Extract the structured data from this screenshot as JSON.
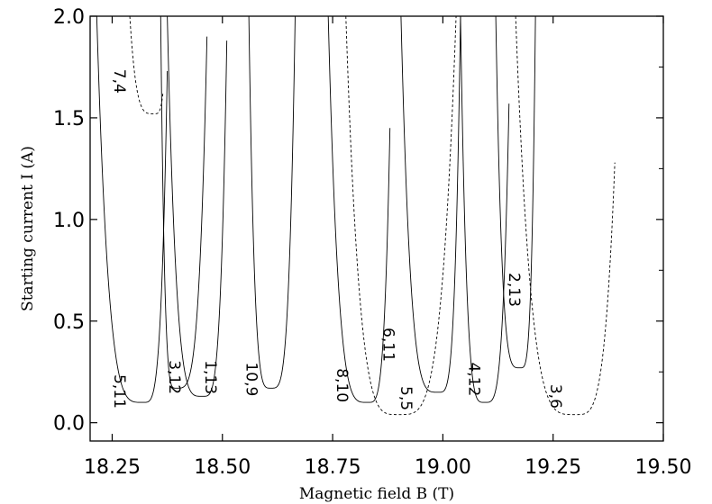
{
  "chart_data": {
    "type": "line",
    "xlabel": "Magnetic field B (T)",
    "ylabel": "Starting current I (A)",
    "xlim": [
      18.2,
      19.5
    ],
    "ylim": [
      -0.09,
      2.0
    ],
    "x_ticks": [
      {
        "value": 18.25,
        "label": "18.25"
      },
      {
        "value": 18.5,
        "label": "18.50"
      },
      {
        "value": 18.75,
        "label": "18.75"
      },
      {
        "value": 19.0,
        "label": "19.00"
      },
      {
        "value": 19.25,
        "label": "19.25"
      },
      {
        "value": 19.5,
        "label": "19.50"
      }
    ],
    "y_ticks": [
      {
        "value": 0.0,
        "label": "0.0"
      },
      {
        "value": 0.5,
        "label": "0.5"
      },
      {
        "value": 1.0,
        "label": "1.0"
      },
      {
        "value": 1.5,
        "label": "1.5"
      },
      {
        "value": 2.0,
        "label": "2.0"
      }
    ],
    "series": [
      {
        "label": "5,11",
        "style": "solid",
        "xl": 18.215,
        "xmin": 18.32,
        "xr": 18.375,
        "ymin": 0.1,
        "yl": 2.0,
        "yr": 1.73
      },
      {
        "label": "7,4",
        "style": "dashed",
        "xl": 18.29,
        "xmin": 18.345,
        "xr": 18.365,
        "ymin": 1.52,
        "yl": 2.0,
        "yr": 1.62
      },
      {
        "label": "3,12",
        "style": "solid",
        "xl": 18.36,
        "xmin": 18.395,
        "xr": 18.465,
        "ymin": 0.17,
        "yl": 2.0,
        "yr": 1.9
      },
      {
        "label": "1,13",
        "style": "solid",
        "xl": 18.375,
        "xmin": 18.455,
        "xr": 18.51,
        "ymin": 0.13,
        "yl": 2.0,
        "yr": 1.88
      },
      {
        "label": "10,9",
        "style": "solid",
        "xl": 18.56,
        "xmin": 18.61,
        "xr": 18.665,
        "ymin": 0.17,
        "yl": 2.0,
        "yr": 2.0
      },
      {
        "label": "8,10",
        "style": "solid",
        "xl": 18.74,
        "xmin": 18.83,
        "xr": 18.88,
        "ymin": 0.1,
        "yl": 2.0,
        "yr": 1.45
      },
      {
        "label": "5,5",
        "style": "dashed",
        "xl": 18.78,
        "xmin": 18.9,
        "xr": 19.03,
        "ymin": 0.04,
        "yl": 2.0,
        "yr": 2.0
      },
      {
        "label": "6,11",
        "style": "solid",
        "xl": 18.905,
        "xmin": 18.99,
        "xr": 19.04,
        "ymin": 0.15,
        "yl": 2.0,
        "yr": 2.0
      },
      {
        "label": "4,12",
        "style": "solid",
        "xl": 19.04,
        "xmin": 19.095,
        "xr": 19.15,
        "ymin": 0.1,
        "yl": 2.0,
        "yr": 1.57
      },
      {
        "label": "2,13",
        "style": "solid",
        "xl": 19.12,
        "xmin": 19.175,
        "xr": 19.21,
        "ymin": 0.27,
        "yl": 2.0,
        "yr": 2.0
      },
      {
        "label": "3,6",
        "style": "dashed",
        "xl": 19.165,
        "xmin": 19.3,
        "xr": 19.39,
        "ymin": 0.04,
        "yl": 2.0,
        "yr": 1.28
      }
    ],
    "annotations": [
      {
        "text": "7,4",
        "x": 18.255,
        "y": 1.62
      },
      {
        "text": "5,11",
        "x": 18.255,
        "y": 0.07
      },
      {
        "text": "3,12",
        "x": 18.38,
        "y": 0.14
      },
      {
        "text": "1,13",
        "x": 18.462,
        "y": 0.14
      },
      {
        "text": "10,9",
        "x": 18.555,
        "y": 0.13
      },
      {
        "text": "8,10",
        "x": 18.76,
        "y": 0.1
      },
      {
        "text": "6,11",
        "x": 18.865,
        "y": 0.3
      },
      {
        "text": "5,5",
        "x": 18.905,
        "y": 0.06
      },
      {
        "text": "4,12",
        "x": 19.06,
        "y": 0.13
      },
      {
        "text": "2,13",
        "x": 19.15,
        "y": 0.57
      },
      {
        "text": "3,6",
        "x": 19.245,
        "y": 0.07
      }
    ],
    "grid": false,
    "legend": "none"
  }
}
